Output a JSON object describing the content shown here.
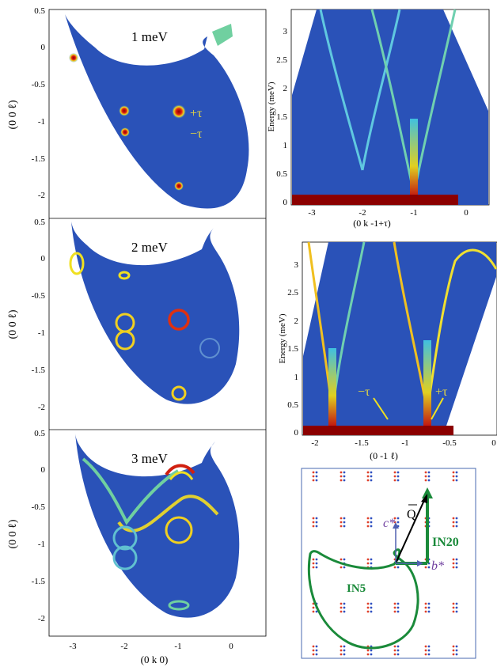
{
  "left_panels": {
    "ylabel": "(0 0 ℓ)",
    "xlabel": "(0 k 0)",
    "xticks": [
      "-3",
      "-2",
      "-1",
      "0"
    ],
    "panels": [
      {
        "energy_label": "1 meV",
        "yticks": [
          "0.5",
          "0",
          "-0.5",
          "-1",
          "-1.5",
          "-2"
        ],
        "tau_plus": "+τ",
        "tau_minus": "−τ"
      },
      {
        "energy_label": "2 meV",
        "yticks": [
          "0.5",
          "0",
          "-0.5",
          "-1",
          "-1.5",
          "-2"
        ]
      },
      {
        "energy_label": "3 meV",
        "yticks": [
          "0.5",
          "0",
          "-0.5",
          "-1",
          "-1.5",
          "-2"
        ]
      }
    ]
  },
  "right_top": {
    "ylabel": "Energy (meV)",
    "xlabel": "(0 k -1+τ)",
    "yticks": [
      "0",
      "0.5",
      "1",
      "1.5",
      "2",
      "2.5",
      "3"
    ],
    "xticks": [
      "-3",
      "-2",
      "-1",
      "0"
    ]
  },
  "right_mid": {
    "ylabel": "Energy (meV)",
    "xlabel": "(0 -1 ℓ)",
    "yticks": [
      "0",
      "0.5",
      "1",
      "1.5",
      "2",
      "2.5",
      "3"
    ],
    "xticks": [
      "-2",
      "-1.5",
      "-1",
      "-0.5",
      "0"
    ],
    "tau_minus": "−τ",
    "tau_plus": "+τ"
  },
  "schematic": {
    "q_label": "Q",
    "c_label": "c*",
    "b_label": "b*",
    "in20_label": "IN20",
    "in5_label": "IN5",
    "colors": {
      "green": "#1a8a3a",
      "red_dot": "#e0402a",
      "blue_dot": "#3050c0",
      "axis": "#5060b0"
    }
  }
}
